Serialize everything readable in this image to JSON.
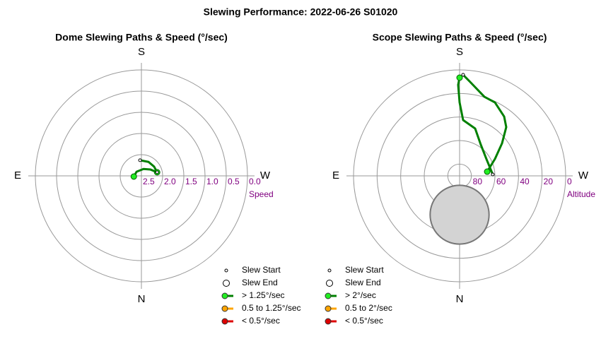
{
  "title": "Slewing Performance: 2022-06-26 S01020",
  "chart_data": [
    {
      "type": "polar",
      "title": "Dome Slewing Paths & Speed (°/sec)",
      "r_label": "Speed",
      "directions": [
        "N",
        "E",
        "S",
        "W"
      ],
      "rlim": [
        2.5,
        0
      ],
      "rticks": [
        2.5,
        {
          "value": 2,
          "label": "2.0"
        },
        1.5,
        {
          "value": 1,
          "label": "1.0"
        },
        0.5,
        {
          "value": 0,
          "label": "0.0"
        }
      ],
      "slews": [
        {
          "color": "#008000",
          "marker_color": "#22ee22",
          "az": [
            175,
            207,
            234,
            257
          ],
          "r": [
            2.13,
            2.13,
            2.13,
            2.12
          ]
        },
        {
          "color": "#008000",
          "marker_color": "#22ee22",
          "az": [
            257,
            235,
            197,
            131,
            85
          ],
          "r": [
            2.12,
            2.24,
            2.33,
            2.35,
            2.32
          ]
        }
      ],
      "legend": [
        {
          "label": "Slew Start"
        },
        {
          "label": "Slew End"
        },
        {
          "label": "> 1.25°/sec",
          "color": "#008000",
          "marker_color": "#22ee22"
        },
        {
          "label": "0.5 to 1.25°/sec",
          "color": "#ffa500",
          "marker_color": "#ffa500"
        },
        {
          "label": "< 0.5°/sec",
          "color": "#dd0000",
          "marker_color": "#dd0000"
        }
      ]
    },
    {
      "type": "polar",
      "title": "Scope Slewing Paths & Speed (°/sec)",
      "r_label": "Altitude",
      "directions": [
        "N",
        "E",
        "S",
        "W"
      ],
      "rlim": [
        90,
        0
      ],
      "rticks": [
        80,
        60,
        40,
        20,
        0
      ],
      "shaded": {
        "az": 0,
        "r": 57,
        "radius": 25,
        "color": "#d3d3d3"
      },
      "slews": [
        {
          "color": "#008000",
          "marker_color": "#22ee22",
          "az": [
            182,
            186.4,
            197.4,
            205.7,
            216.9,
            223.7,
            232.5,
            244.4,
            261.3
          ],
          "r": [
            4.1,
            9.7,
            19.6,
            20.8,
            27,
            32.7,
            44.6,
            56.7,
            66.3
          ]
        },
        {
          "color": "#008000",
          "marker_color": "#22ee22",
          "az": [
            267.6,
            237.7,
            214.3,
            198.2,
            183.6,
            180,
            179.1,
            180
          ],
          "r": [
            61.8,
            63.1,
            58,
            47.7,
            42.5,
            27.6,
            12.6,
            6.6
          ]
        }
      ],
      "legend": [
        {
          "label": "Slew Start"
        },
        {
          "label": "Slew End"
        },
        {
          "label": "> 2°/sec",
          "color": "#008000",
          "marker_color": "#22ee22"
        },
        {
          "label": "0.5 to 2°/sec",
          "color": "#ffa500",
          "marker_color": "#ffa500"
        },
        {
          "label": "< 0.5°/sec",
          "color": "#dd0000",
          "marker_color": "#dd0000"
        }
      ]
    }
  ]
}
